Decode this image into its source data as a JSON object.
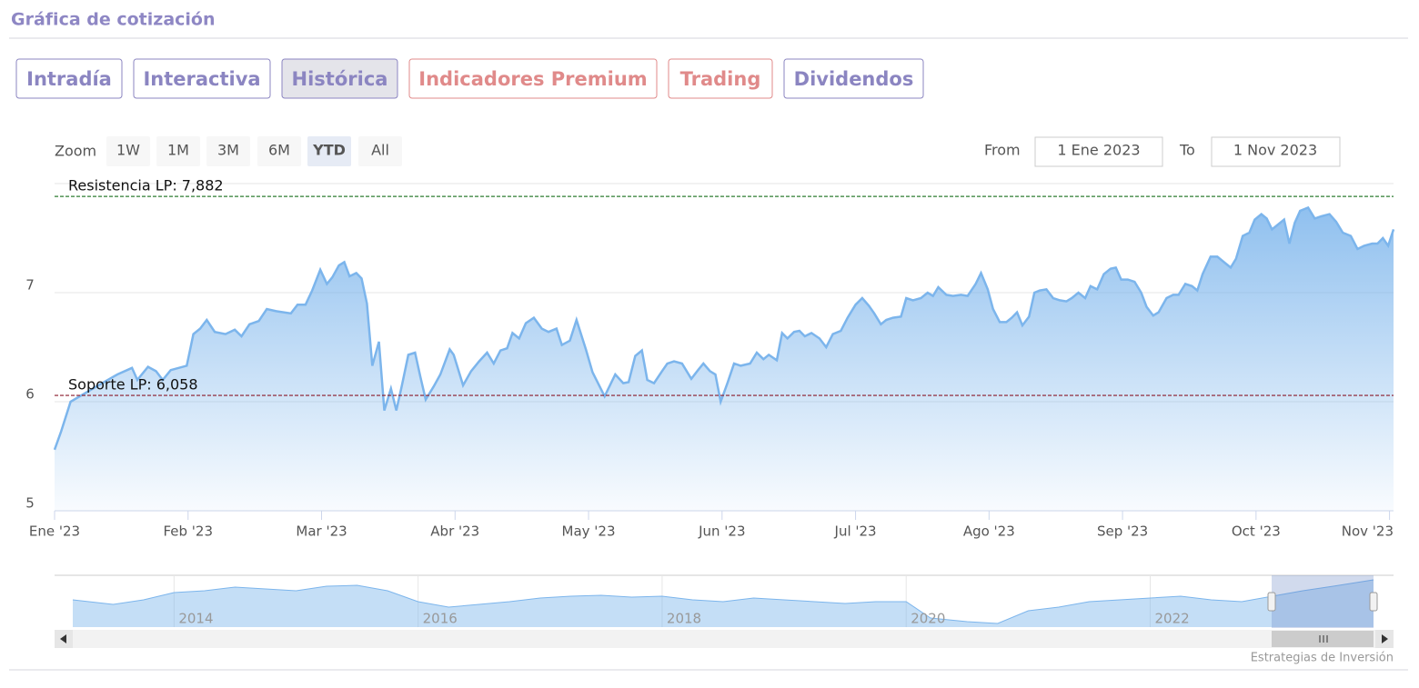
{
  "header": {
    "title": "Gráfica de cotización"
  },
  "tabs": [
    {
      "label": "Intradía",
      "color": "#8b85c1",
      "active": false
    },
    {
      "label": "Interactiva",
      "color": "#8b85c1",
      "active": false
    },
    {
      "label": "Histórica",
      "color": "#8b85c1",
      "active": true
    },
    {
      "label": "Indicadores Premium",
      "color": "#e08a8a",
      "active": false
    },
    {
      "label": "Trading",
      "color": "#e08a8a",
      "active": false
    },
    {
      "label": "Dividendos",
      "color": "#8b85c1",
      "active": false
    }
  ],
  "zoom": {
    "label": "Zoom",
    "buttons": [
      {
        "label": "1W",
        "active": false
      },
      {
        "label": "1M",
        "active": false
      },
      {
        "label": "3M",
        "active": false
      },
      {
        "label": "6M",
        "active": false
      },
      {
        "label": "YTD",
        "active": true
      },
      {
        "label": "All",
        "active": false
      }
    ]
  },
  "range": {
    "from_label": "From",
    "from": "1 Ene 2023",
    "to_label": "To",
    "to": "1 Nov 2023"
  },
  "credit": "Estrategias de Inversión",
  "chart_data": [
    {
      "type": "area",
      "color": "#7cb5ec",
      "x": [
        0,
        0.05,
        0.12,
        0.23,
        0.37,
        0.47,
        0.58,
        0.62,
        0.7,
        0.76,
        0.81,
        0.87,
        0.99,
        1.04,
        1.09,
        1.14,
        1.2,
        1.28,
        1.35,
        1.4,
        1.46,
        1.53,
        1.59,
        1.66,
        1.77,
        1.82,
        1.88,
        1.93,
        1.99,
        2.04,
        2.08,
        2.13,
        2.17,
        2.21,
        2.26,
        2.3,
        2.34,
        2.38,
        2.43,
        2.47,
        2.52,
        2.56,
        2.6,
        2.65,
        2.7,
        2.74,
        2.78,
        2.84,
        2.89,
        2.96,
        2.99,
        3.06,
        3.12,
        3.18,
        3.24,
        3.29,
        3.34,
        3.39,
        3.43,
        3.48,
        3.53,
        3.59,
        3.65,
        3.7,
        3.76,
        3.8,
        3.86,
        3.91,
        3.98,
        4.03,
        4.12,
        4.2,
        4.26,
        4.3,
        4.35,
        4.4,
        4.44,
        4.49,
        4.55,
        4.59,
        4.64,
        4.7,
        4.77,
        4.82,
        4.86,
        4.91,
        4.95,
        4.99,
        5.04,
        5.09,
        5.14,
        5.21,
        5.26,
        5.31,
        5.35,
        5.41,
        5.45,
        5.49,
        5.54,
        5.58,
        5.62,
        5.67,
        5.73,
        5.78,
        5.83,
        5.89,
        5.94,
        6,
        6.05,
        6.1,
        6.14,
        6.19,
        6.23,
        6.28,
        6.34,
        6.38,
        6.43,
        6.49,
        6.54,
        6.58,
        6.62,
        6.68,
        6.73,
        6.79,
        6.84,
        6.9,
        6.94,
        6.99,
        7.03,
        7.08,
        7.13,
        7.17,
        7.21,
        7.25,
        7.3,
        7.34,
        7.38,
        7.43,
        7.48,
        7.53,
        7.58,
        7.62,
        7.67,
        7.72,
        7.76,
        7.81,
        7.86,
        7.91,
        7.95,
        7.99,
        8.04,
        8.09,
        8.14,
        8.18,
        8.23,
        8.27,
        8.33,
        8.38,
        8.42,
        8.47,
        8.52,
        8.56,
        8.6,
        8.66,
        8.71,
        8.77,
        8.81,
        8.85,
        8.9,
        8.95,
        8.99,
        9.04,
        9.08,
        9.12,
        9.16,
        9.21,
        9.25,
        9.29,
        9.33,
        9.39,
        9.44,
        9.49,
        9.55,
        9.6,
        9.65,
        9.71,
        9.76,
        9.81,
        9.87,
        9.91,
        9.95,
        9.99,
        10.03
      ],
      "values": [
        5.56,
        5.73,
        6.0,
        6.08,
        6.18,
        6.25,
        6.31,
        6.2,
        6.32,
        6.28,
        6.2,
        6.29,
        6.33,
        6.62,
        6.67,
        6.75,
        6.64,
        6.62,
        6.66,
        6.6,
        6.71,
        6.74,
        6.85,
        6.83,
        6.81,
        6.89,
        6.89,
        7.02,
        7.21,
        7.08,
        7.14,
        7.25,
        7.28,
        7.15,
        7.18,
        7.13,
        6.9,
        6.33,
        6.55,
        5.92,
        6.12,
        5.92,
        6.14,
        6.43,
        6.45,
        6.23,
        6.02,
        6.14,
        6.25,
        6.48,
        6.43,
        6.15,
        6.28,
        6.37,
        6.45,
        6.35,
        6.47,
        6.49,
        6.63,
        6.58,
        6.72,
        6.77,
        6.67,
        6.64,
        6.67,
        6.52,
        6.56,
        6.75,
        6.48,
        6.27,
        6.05,
        6.25,
        6.17,
        6.18,
        6.42,
        6.47,
        6.2,
        6.17,
        6.28,
        6.35,
        6.37,
        6.35,
        6.21,
        6.29,
        6.35,
        6.28,
        6.25,
        6.0,
        6.17,
        6.35,
        6.33,
        6.35,
        6.45,
        6.39,
        6.43,
        6.38,
        6.63,
        6.58,
        6.64,
        6.65,
        6.6,
        6.63,
        6.58,
        6.5,
        6.62,
        6.65,
        6.77,
        6.89,
        6.95,
        6.88,
        6.81,
        6.71,
        6.75,
        6.77,
        6.78,
        6.95,
        6.93,
        6.95,
        7.0,
        6.97,
        7.05,
        6.98,
        6.97,
        6.98,
        6.97,
        7.08,
        7.18,
        7.03,
        6.85,
        6.73,
        6.73,
        6.77,
        6.82,
        6.7,
        6.78,
        7.0,
        7.02,
        7.03,
        6.95,
        6.93,
        6.92,
        6.95,
        7.0,
        6.95,
        7.06,
        7.03,
        7.17,
        7.22,
        7.23,
        7.12,
        7.12,
        7.1,
        7.0,
        6.87,
        6.79,
        6.82,
        6.95,
        6.98,
        6.98,
        7.08,
        7.06,
        7.02,
        7.17,
        7.33,
        7.33,
        7.27,
        7.23,
        7.31,
        7.52,
        7.55,
        7.67,
        7.72,
        7.68,
        7.58,
        7.62,
        7.67,
        7.45,
        7.64,
        7.75,
        7.78,
        7.68,
        7.7,
        7.72,
        7.65,
        7.55,
        7.52,
        7.4,
        7.43,
        7.45,
        7.45,
        7.5,
        7.43,
        7.58
      ],
      "xlim": [
        0,
        10.03
      ],
      "xticks": [
        {
          "value": 0,
          "label": "Ene '23"
        },
        {
          "value": 1,
          "label": "Feb '23"
        },
        {
          "value": 2,
          "label": "Mar '23"
        },
        {
          "value": 3,
          "label": "Abr '23"
        },
        {
          "value": 4,
          "label": "May '23"
        },
        {
          "value": 5,
          "label": "Jun '23"
        },
        {
          "value": 6,
          "label": "Jul '23"
        },
        {
          "value": 7,
          "label": "Ago '23"
        },
        {
          "value": 8,
          "label": "Sep '23"
        },
        {
          "value": 9,
          "label": "Oct '23"
        },
        {
          "value": 10,
          "label": "Nov '23"
        }
      ],
      "ylim": [
        5,
        8
      ],
      "yticks": [
        5,
        6,
        7
      ],
      "grid": true,
      "annotations": [
        {
          "label": "Resistencia LP: 7,882",
          "value": 7.882,
          "color": "#2e7d32"
        },
        {
          "label": "Soporte LP: 6,058",
          "value": 6.058,
          "color": "#8b1a2a"
        }
      ]
    },
    {
      "type": "area",
      "color": "#7cb5ec",
      "x": [
        2013.17,
        2013.5,
        2013.75,
        2014,
        2014.25,
        2014.5,
        2014.75,
        2015,
        2015.25,
        2015.5,
        2015.75,
        2016,
        2016.25,
        2016.5,
        2016.75,
        2017,
        2017.25,
        2017.5,
        2017.75,
        2018,
        2018.25,
        2018.5,
        2018.75,
        2019,
        2019.25,
        2019.5,
        2019.75,
        2020,
        2020.2,
        2020.5,
        2020.75,
        2021,
        2021.25,
        2021.5,
        2021.75,
        2022,
        2022.25,
        2022.5,
        2022.75,
        2023,
        2023.25,
        2023.5,
        2023.83
      ],
      "values": [
        6.16,
        5.63,
        6.16,
        7.0,
        7.21,
        7.63,
        7.42,
        7.21,
        7.74,
        7.84,
        7.21,
        5.95,
        5.32,
        5.63,
        5.95,
        6.37,
        6.58,
        6.68,
        6.47,
        6.58,
        6.16,
        5.95,
        6.37,
        6.16,
        5.95,
        5.74,
        5.95,
        5.95,
        4.05,
        3.63,
        3.42,
        4.89,
        5.32,
        5.95,
        6.16,
        6.37,
        6.58,
        6.16,
        5.95,
        6.58,
        7.21,
        7.74,
        8.47
      ],
      "xlim": [
        2013.17,
        2023.83
      ],
      "xticks": [
        2014,
        2016,
        2018,
        2020,
        2022
      ],
      "ylim": [
        3,
        9
      ],
      "grid": true
    }
  ]
}
